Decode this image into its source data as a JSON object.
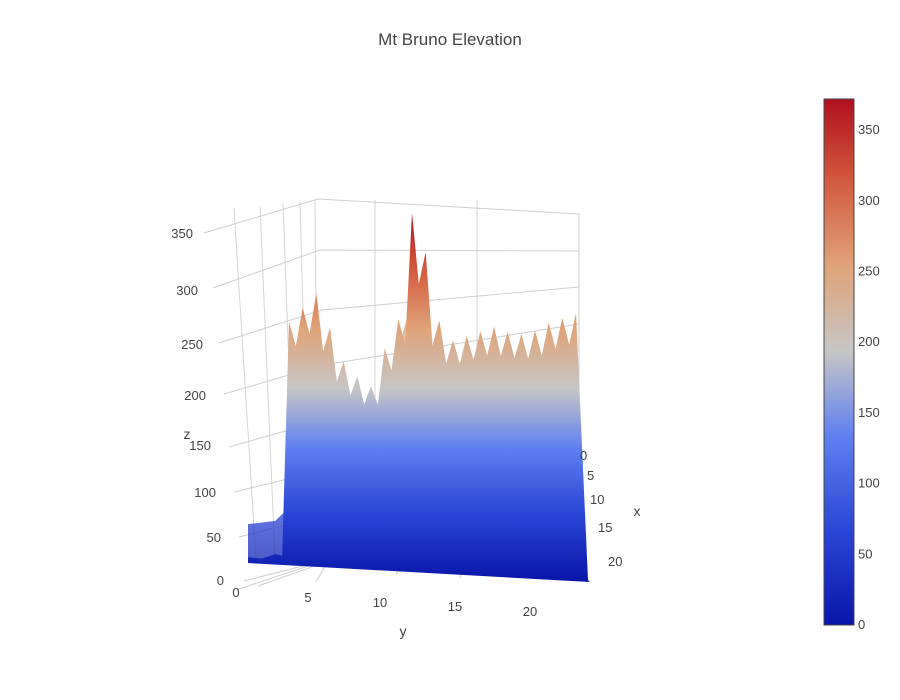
{
  "chart_data": {
    "type": "surface",
    "title": "Mt Bruno Elevation",
    "x_axis": {
      "label": "x",
      "ticks": [
        0,
        5,
        10,
        15,
        20
      ],
      "range": [
        0,
        24
      ]
    },
    "y_axis": {
      "label": "y",
      "ticks": [
        0,
        5,
        10,
        15,
        20
      ],
      "range": [
        0,
        24
      ]
    },
    "z_axis": {
      "label": "z",
      "ticks": [
        0,
        50,
        100,
        150,
        200,
        250,
        300,
        350
      ],
      "range": [
        0,
        370
      ]
    },
    "colorbar": {
      "ticks": [
        0,
        50,
        100,
        150,
        200,
        250,
        300,
        350
      ],
      "range": [
        0,
        372
      ],
      "colorscale": [
        [
          0.0,
          "#0a16aa"
        ],
        [
          0.18,
          "#2a46d6"
        ],
        [
          0.36,
          "#6080f0"
        ],
        [
          0.52,
          "#c6c6c6"
        ],
        [
          0.68,
          "#e0a47a"
        ],
        [
          0.85,
          "#d2573c"
        ],
        [
          1.0,
          "#b0101e"
        ]
      ]
    },
    "y_profile": {
      "x": [
        0,
        2,
        3,
        4,
        5,
        6,
        7,
        8,
        9,
        10,
        11,
        12,
        13,
        14,
        15,
        16,
        17,
        18,
        19,
        20,
        21,
        22,
        23,
        24
      ],
      "z_max": [
        5,
        10,
        255,
        270,
        285,
        250,
        215,
        200,
        190,
        230,
        260,
        370,
        330,
        260,
        240,
        245,
        250,
        255,
        250,
        248,
        252,
        260,
        265,
        270
      ]
    }
  }
}
